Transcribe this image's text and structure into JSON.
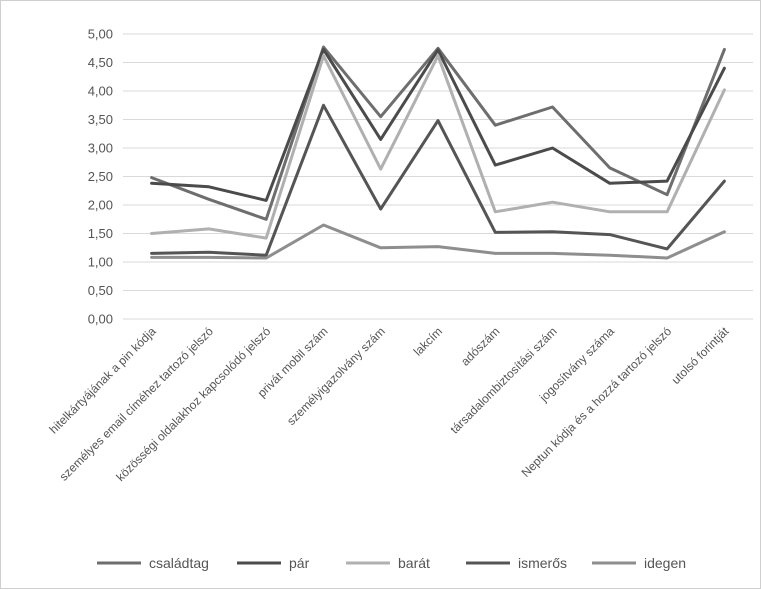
{
  "chart_data": {
    "type": "line",
    "title": "",
    "xlabel": "",
    "ylabel": "",
    "ylim": [
      0,
      5
    ],
    "yticks": [
      "0,00",
      "0,50",
      "1,00",
      "1,50",
      "2,00",
      "2,50",
      "3,00",
      "3,50",
      "4,00",
      "4,50",
      "5,00"
    ],
    "grid": true,
    "legend_position": "bottom",
    "categories": [
      "hitelkártyájának a pin kódja",
      "személyes email címéhez tartozó jelszó",
      "közösségi oldalakhoz kapcsolódó jelszó",
      "privát mobil szám",
      "személyigazolvány szám",
      "lakcím",
      "adószám",
      "társadalombiztosítási szám",
      "jogosítvány száma",
      "Neptun kódja és a hozzá tartozó jelszó",
      "utolsó forintját"
    ],
    "series": [
      {
        "name": "családtag",
        "color": "#6e6e6e",
        "values": [
          2.48,
          2.1,
          1.75,
          4.77,
          3.55,
          4.75,
          3.4,
          3.72,
          2.65,
          2.18,
          4.73
        ]
      },
      {
        "name": "pár",
        "color": "#4b4b4b",
        "values": [
          2.38,
          2.32,
          2.08,
          4.73,
          3.15,
          4.72,
          2.7,
          3.0,
          2.38,
          2.42,
          4.4
        ]
      },
      {
        "name": "barát",
        "color": "#b0b0b0",
        "values": [
          1.5,
          1.58,
          1.42,
          4.62,
          2.63,
          4.62,
          1.88,
          2.05,
          1.88,
          1.88,
          4.02
        ]
      },
      {
        "name": "ismerős",
        "color": "#555555",
        "values": [
          1.15,
          1.17,
          1.12,
          3.75,
          1.93,
          3.48,
          1.52,
          1.53,
          1.48,
          1.23,
          2.42
        ]
      },
      {
        "name": "idegen",
        "color": "#8e8e8e",
        "values": [
          1.08,
          1.08,
          1.07,
          1.65,
          1.25,
          1.27,
          1.15,
          1.15,
          1.12,
          1.07,
          1.53
        ]
      }
    ]
  }
}
